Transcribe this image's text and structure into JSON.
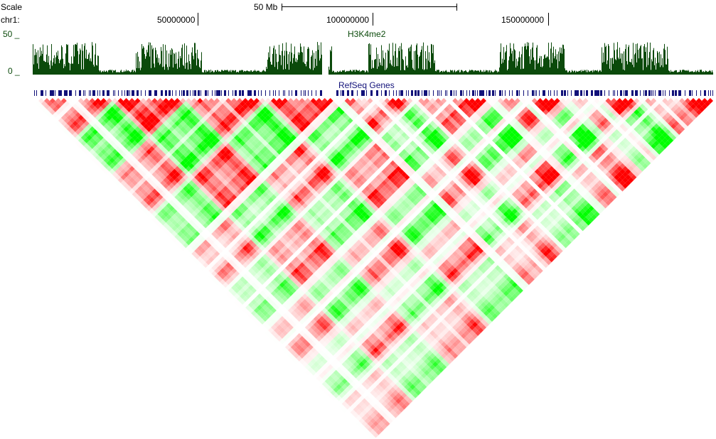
{
  "ruler": {
    "scale_label": "Scale",
    "scale_bar_label": "50 Mb",
    "chrom_label": "chr1:",
    "ticks": [
      "50000000",
      "100000000",
      "150000000"
    ]
  },
  "tracks": {
    "signal": {
      "name": "H3K4me2",
      "ymax_label": "50 _",
      "ymin_label": "0 _",
      "color": "#0b4a0b"
    },
    "genes": {
      "name": "RefSeq Genes",
      "color": "#12127a"
    }
  },
  "heatmap": {
    "positive_color": "#ff0000",
    "negative_color": "#00ff00",
    "neutral_color": "#ffffff"
  }
}
